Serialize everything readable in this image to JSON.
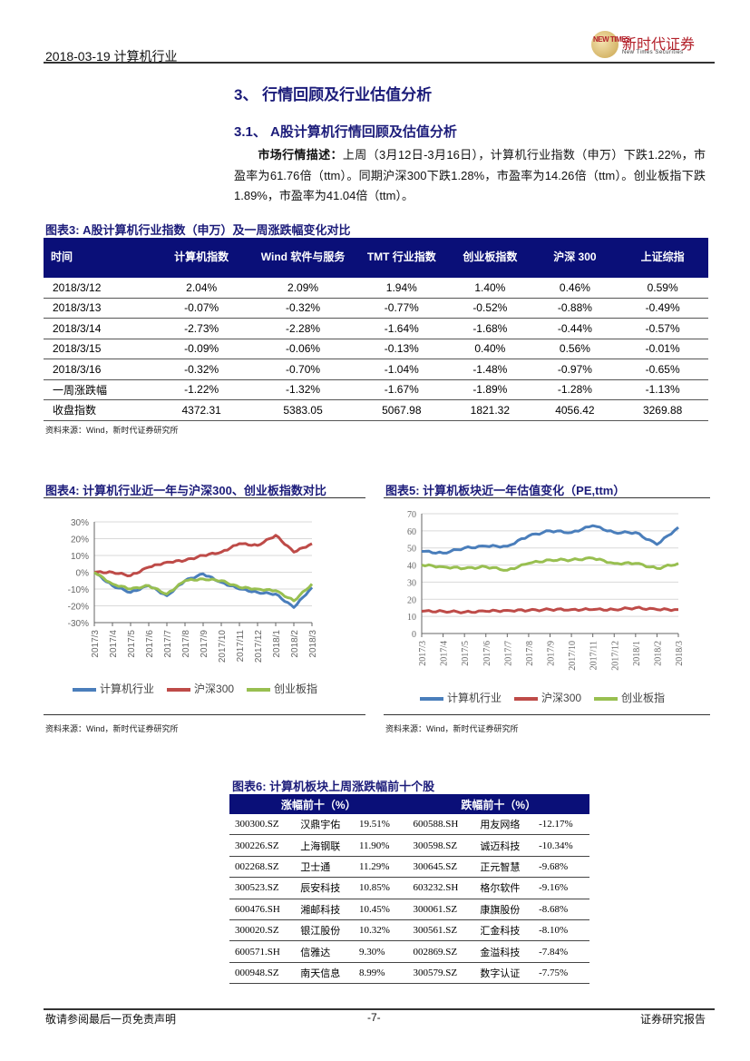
{
  "header": {
    "date_industry": "2018-03-19 计算机行业",
    "logo_cn": "新时代证券",
    "logo_en": "New Times Securities",
    "logo_mark": "NEW TIMES"
  },
  "section": {
    "h1": "3、 行情回顾及行业估值分析",
    "h2": "3.1、 A股计算机行情回顾及估值分析",
    "para_label": "市场行情描述：",
    "para_text": "上周（3月12日-3月16日），计算机行业指数（申万）下跌1.22%，市盈率为61.76倍（ttm）。同期沪深300下跌1.28%，市盈率为14.26倍（ttm）。创业板指下跌1.89%，市盈率为41.04倍（ttm）。"
  },
  "table3": {
    "caption": "图表3:   A股计算机行业指数（申万）及一周涨跌幅变化对比",
    "headers": [
      "时间",
      "计算机指数",
      "Wind 软件与服务",
      "TMT 行业指数",
      "创业板指数",
      "沪深 300",
      "上证综指"
    ],
    "rows": [
      [
        "2018/3/12",
        "2.04%",
        "2.09%",
        "1.94%",
        "1.40%",
        "0.46%",
        "0.59%"
      ],
      [
        "2018/3/13",
        "-0.07%",
        "-0.32%",
        "-0.77%",
        "-0.52%",
        "-0.88%",
        "-0.49%"
      ],
      [
        "2018/3/14",
        "-2.73%",
        "-2.28%",
        "-1.64%",
        "-1.68%",
        "-0.44%",
        "-0.57%"
      ],
      [
        "2018/3/15",
        "-0.09%",
        "-0.06%",
        "-0.13%",
        "0.40%",
        "0.56%",
        "-0.01%"
      ],
      [
        "2018/3/16",
        "-0.32%",
        "-0.70%",
        "-1.04%",
        "-1.48%",
        "-0.97%",
        "-0.65%"
      ],
      [
        "一周涨跌幅",
        "-1.22%",
        "-1.32%",
        "-1.67%",
        "-1.89%",
        "-1.28%",
        "-1.13%"
      ],
      [
        "收盘指数",
        "4372.31",
        "5383.05",
        "5067.98",
        "1821.32",
        "4056.42",
        "3269.88"
      ]
    ],
    "source": "资料来源：Wind，新时代证券研究所"
  },
  "chart4": {
    "caption": "图表4:   计算机行业近一年与沪深300、创业板指数对比",
    "source": "资料来源：Wind，新时代证券研究所"
  },
  "chart5": {
    "caption": "图表5:   计算机板块近一年估值变化（PE,ttm）",
    "source": "资料来源：Wind，新时代证券研究所"
  },
  "chart_data": [
    {
      "type": "line",
      "title": "计算机行业近一年与沪深300、创业板指数对比",
      "xlabel": "",
      "ylabel": "",
      "categories": [
        "2017/3",
        "2017/4",
        "2017/5",
        "2017/6",
        "2017/7",
        "2017/8",
        "2017/9",
        "2017/10",
        "2017/11",
        "2017/12",
        "2018/1",
        "2018/2",
        "2018/3"
      ],
      "yticks": [
        "30%",
        "20%",
        "10%",
        "0%",
        "-10%",
        "-20%",
        "-30%"
      ],
      "ylim": [
        -30,
        30
      ],
      "grid": true,
      "legend_position": "bottom",
      "series": [
        {
          "name": "计算机行业",
          "color": "#4a7ebb",
          "values": [
            0,
            -8,
            -12,
            -8,
            -14,
            -5,
            -1,
            -6,
            -10,
            -12,
            -13,
            -21,
            -9
          ]
        },
        {
          "name": "沪深300",
          "color": "#be4b48",
          "values": [
            0,
            0,
            -2,
            3,
            6,
            7,
            10,
            12,
            17,
            16,
            22,
            12,
            17
          ]
        },
        {
          "name": "创业板指",
          "color": "#98bf50",
          "values": [
            0,
            -7,
            -10,
            -8,
            -13,
            -5,
            -4,
            -5,
            -9,
            -10,
            -11,
            -17,
            -7
          ]
        }
      ]
    },
    {
      "type": "line",
      "title": "计算机板块近一年估值变化（PE,ttm）",
      "xlabel": "",
      "ylabel": "",
      "categories": [
        "2017/3",
        "2017/4",
        "2017/5",
        "2017/6",
        "2017/7",
        "2017/8",
        "2017/9",
        "2017/10",
        "2017/11",
        "2017/12",
        "2018/1",
        "2018/2",
        "2018/3"
      ],
      "yticks": [
        "70",
        "60",
        "50",
        "40",
        "30",
        "20",
        "10",
        "0"
      ],
      "ylim": [
        0,
        70
      ],
      "grid": true,
      "legend_position": "bottom",
      "series": [
        {
          "name": "计算机行业",
          "color": "#4a7ebb",
          "values": [
            48,
            47,
            50,
            51,
            51,
            57,
            60,
            59,
            63,
            59,
            59,
            52,
            62
          ]
        },
        {
          "name": "沪深300",
          "color": "#be4b48",
          "values": [
            13,
            13,
            12.5,
            13,
            13.5,
            13.5,
            14,
            14,
            14,
            14,
            15,
            14,
            14
          ]
        },
        {
          "name": "创业板指",
          "color": "#98bf50",
          "values": [
            40,
            39,
            38,
            39,
            37,
            41,
            43,
            43,
            44,
            41,
            41,
            38,
            41
          ]
        }
      ]
    }
  ],
  "table6": {
    "caption": "图表6:   计算机板块上周涨跌幅前十个股",
    "headers": [
      "涨幅前十（%）",
      "跌幅前十（%）"
    ],
    "rows": [
      [
        "300300.SZ",
        "汉鼎宇佑",
        "19.51%",
        "600588.SH",
        "用友网络",
        "-12.17%"
      ],
      [
        "300226.SZ",
        "上海钢联",
        "11.90%",
        "300598.SZ",
        "诚迈科技",
        "-10.34%"
      ],
      [
        "002268.SZ",
        "卫士通",
        "11.29%",
        "300645.SZ",
        "正元智慧",
        "-9.68%"
      ],
      [
        "300523.SZ",
        "辰安科技",
        "10.85%",
        "603232.SH",
        "格尔软件",
        "-9.16%"
      ],
      [
        "600476.SH",
        "湘邮科技",
        "10.45%",
        "300061.SZ",
        "康旗股份",
        "-8.68%"
      ],
      [
        "300020.SZ",
        "银江股份",
        "10.32%",
        "300561.SZ",
        "汇金科技",
        "-8.10%"
      ],
      [
        "600571.SH",
        "信雅达",
        "9.30%",
        "002869.SZ",
        "金溢科技",
        "-7.84%"
      ],
      [
        "000948.SZ",
        "南天信息",
        "8.99%",
        "300579.SZ",
        "数字认证",
        "-7.75%"
      ]
    ]
  },
  "footer": {
    "disclaimer": "敬请参阅最后一页免责声明",
    "page": "-7-",
    "report_type": "证券研究报告"
  }
}
